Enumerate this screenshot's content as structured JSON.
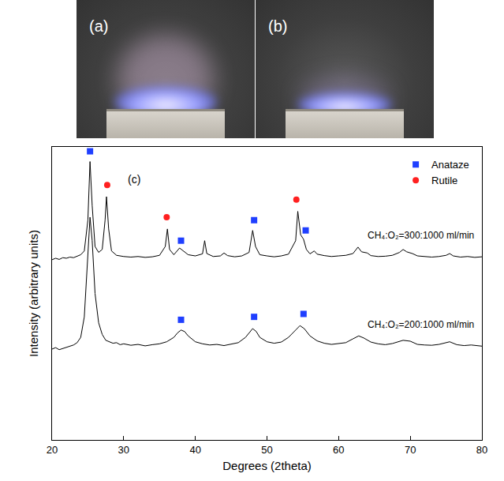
{
  "photos": [
    {
      "label": "(a)"
    },
    {
      "label": "(b)"
    }
  ],
  "chart_data": {
    "type": "line",
    "x_label": "Degrees (2theta)",
    "y_label": "Intensity (arbitrary units)",
    "xlim": [
      20,
      80
    ],
    "xticks": [
      20,
      30,
      40,
      50,
      60,
      70,
      80
    ],
    "ylim": [
      0,
      100
    ],
    "tick_labels": "x",
    "grid": false,
    "legend": "top right",
    "series": [
      {
        "type": "line",
        "color": "#000000",
        "x": [
          20,
          20.5,
          21,
          21.5,
          22,
          22.5,
          23,
          23.5,
          24,
          24.5,
          25,
          25.3,
          25.6,
          26,
          26.5,
          27,
          27.4,
          27.6,
          27.9,
          28.3,
          29,
          30,
          31,
          32,
          33,
          34,
          35,
          35.8,
          36.1,
          36.4,
          37,
          37.8,
          38.2,
          39,
          40,
          41,
          41.3,
          41.6,
          42.5,
          43.5,
          44,
          44.5,
          45.5,
          46.5,
          47.5,
          48,
          48.4,
          49,
          50,
          51,
          52,
          53,
          54,
          54.3,
          54.7,
          55.1,
          55.5,
          56,
          56.6,
          57,
          58,
          59,
          60,
          61,
          62,
          62.7,
          63.2,
          64,
          64.5,
          65.5,
          66.5,
          67.5,
          68.5,
          69,
          69.5,
          70.3,
          71,
          72,
          73,
          74,
          75,
          75.5,
          76,
          77,
          78,
          79,
          80
        ],
        "values": [
          61.5,
          62,
          61.6,
          62.2,
          62,
          62.4,
          62.2,
          62.8,
          63.2,
          64.5,
          75,
          95,
          80,
          66,
          64,
          65,
          75,
          83,
          72,
          64.5,
          63,
          62.6,
          62.4,
          62.6,
          62.3,
          62.5,
          63,
          66,
          72,
          65,
          63.2,
          65.5,
          64.8,
          63.2,
          62.8,
          63.5,
          68,
          63.6,
          62.6,
          62.8,
          63.8,
          62.9,
          62.5,
          62.8,
          64,
          71.5,
          66,
          63.2,
          62.8,
          62.5,
          62.8,
          63.4,
          68,
          78,
          70,
          68.5,
          65,
          63.5,
          64.5,
          63.4,
          62.9,
          62.6,
          62.8,
          63,
          63.6,
          65.8,
          64.2,
          63.8,
          62.9,
          62.6,
          62.7,
          63,
          64,
          65,
          64.2,
          63.6,
          62.8,
          62.5,
          62.4,
          62.6,
          63,
          63.6,
          62.8,
          62.4,
          62.6,
          62.3,
          62.5
        ]
      },
      {
        "type": "line",
        "color": "#000000",
        "x": [
          20,
          20.5,
          21,
          21.5,
          22,
          22.5,
          23,
          23.5,
          24,
          24.5,
          25,
          25.3,
          25.6,
          26,
          26.5,
          27,
          27.5,
          28,
          28.5,
          29,
          29.5,
          30,
          31,
          32,
          33,
          34,
          35,
          36,
          37,
          37.5,
          38,
          38.5,
          39,
          40,
          41,
          42,
          43,
          44,
          45,
          46,
          47,
          47.5,
          48,
          48.5,
          49,
          50,
          51,
          52,
          53,
          54,
          54.6,
          55.2,
          56,
          57,
          58,
          59,
          60,
          61,
          62,
          62.8,
          63.5,
          64.5,
          65.5,
          66.5,
          67.5,
          68.5,
          69,
          70,
          71,
          72,
          73,
          74,
          75,
          75.5,
          76.5,
          77.5,
          78.5,
          80
        ],
        "values": [
          31,
          31.5,
          30.8,
          31.2,
          31.6,
          31.9,
          32.4,
          33.2,
          35,
          42,
          62,
          76,
          68,
          50,
          40,
          36,
          34,
          33.5,
          33,
          33.2,
          32.5,
          32.8,
          32.3,
          32.6,
          32.1,
          32.5,
          32.8,
          33.5,
          35,
          36.5,
          37.5,
          37,
          35.5,
          33.5,
          32.8,
          32.4,
          32.6,
          32.2,
          32.8,
          33.2,
          35,
          36.5,
          38,
          37,
          35,
          33.5,
          33,
          33.4,
          35,
          37.5,
          39,
          38,
          35.5,
          33.8,
          33,
          32.6,
          32.8,
          33.2,
          34.5,
          35.5,
          34.8,
          33.4,
          32.8,
          32.5,
          32.9,
          33.6,
          34,
          33.7,
          32.6,
          32.4,
          32.3,
          32.6,
          33.3,
          33.5,
          32.5,
          32.2,
          32.4,
          32
        ]
      },
      {
        "type": "scatter",
        "name": "Anataze",
        "marker": "square",
        "color": "#1f3fff",
        "x": [
          25.3,
          38,
          48.2,
          55.4,
          38,
          48.2,
          55.1
        ],
        "values": [
          98.5,
          68,
          75,
          71.5,
          41,
          42,
          43
        ]
      },
      {
        "type": "scatter",
        "name": "Rutile",
        "marker": "circle",
        "color": "#ff2020",
        "x": [
          27.7,
          36.0,
          54.1
        ],
        "values": [
          87,
          76,
          82
        ]
      }
    ],
    "annotations": [
      {
        "text": "(c)",
        "x": 31.5,
        "y": 89
      },
      {
        "text": "CH₄:O₂=300:1000 ml/min",
        "x": 71.5,
        "y": 67.5
      },
      {
        "text": "CH₄:O₂=200:1000 ml/min",
        "x": 71.5,
        "y": 37
      }
    ]
  }
}
